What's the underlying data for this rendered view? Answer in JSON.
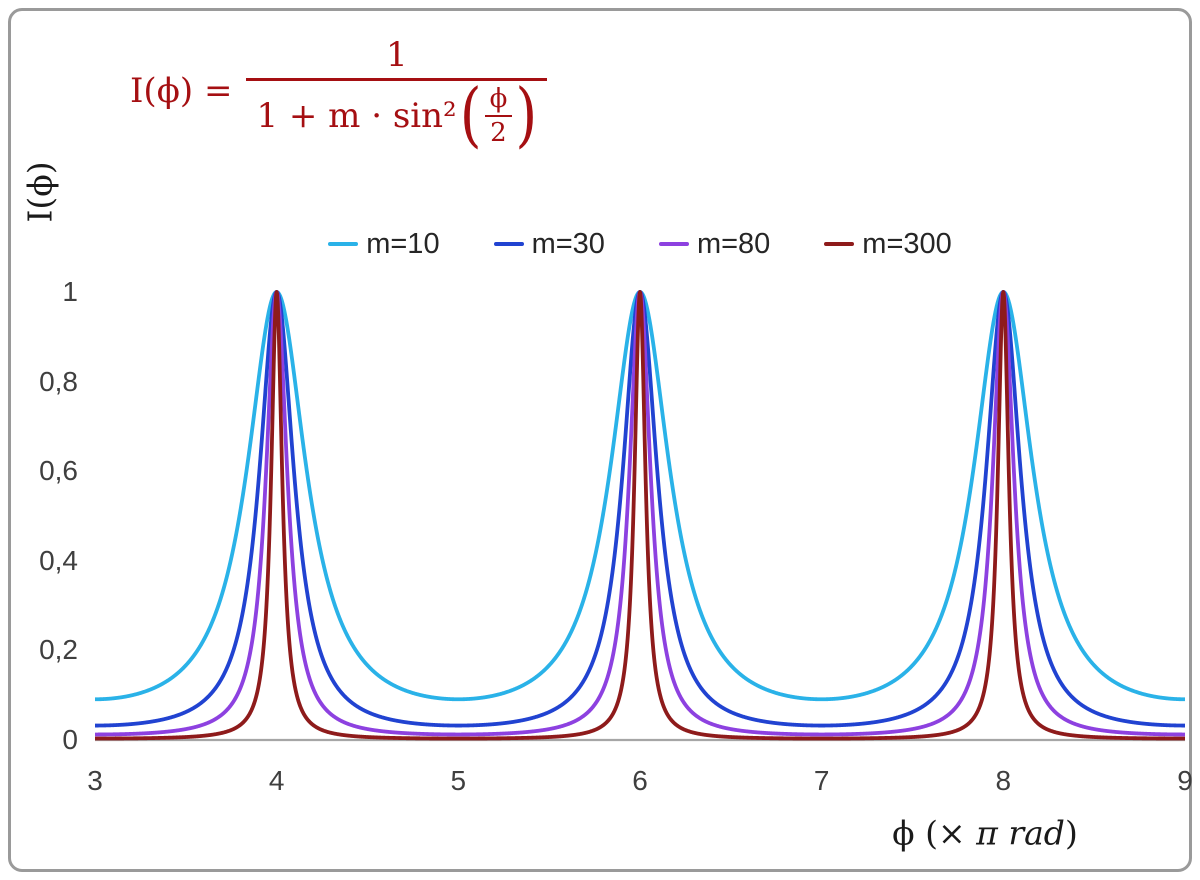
{
  "labels": {
    "formula_lhs": "I(ϕ) =",
    "formula_numerator": "1",
    "formula_den_prefix": "1 + m · sin²",
    "formula_inner_num": "ϕ",
    "formula_inner_den": "2",
    "paren_open": "(",
    "paren_close": ")",
    "y_axis_title": "I(ϕ)",
    "x_axis_pre": "ϕ  (× ",
    "x_axis_italic": "π rad",
    "x_axis_post": ")"
  },
  "colors": {
    "border": "#9a9a9a",
    "axis_line": "#a6a6a6",
    "formula": "#a50f12",
    "tick_text": "#3f3f3f",
    "legend_text": "#262626"
  },
  "chart_data": {
    "type": "line",
    "function": "I(ϕ) = 1 / (1 + m · sin²(ϕ/2)), with ϕ expressed in units of π rad",
    "title": "",
    "xlabel": "ϕ (× π rad)",
    "ylabel": "I(ϕ)",
    "xlim": [
      3,
      9
    ],
    "ylim": [
      0,
      1
    ],
    "x_ticks": [
      "3",
      "4",
      "5",
      "6",
      "7",
      "8",
      "9"
    ],
    "y_ticks": [
      "0",
      "0,2",
      "0,4",
      "0,6",
      "0,8",
      "1"
    ],
    "grid": false,
    "legend_position": "top-center",
    "peaks": {
      "x": [
        4,
        6,
        8
      ],
      "I": 1
    },
    "minima": {
      "x": [
        3,
        5,
        7,
        9
      ],
      "I_by_series": {
        "m=10": 0.0909,
        "m=30": 0.0323,
        "m=80": 0.0123,
        "m=300": 0.0033
      }
    },
    "series": [
      {
        "name": "m=10",
        "m": 10,
        "color": "#2ab2e8"
      },
      {
        "name": "m=30",
        "m": 30,
        "color": "#2143d1"
      },
      {
        "name": "m=80",
        "m": 80,
        "color": "#8d41e0"
      },
      {
        "name": "m=300",
        "m": 300,
        "color": "#8e1b1b"
      }
    ]
  }
}
